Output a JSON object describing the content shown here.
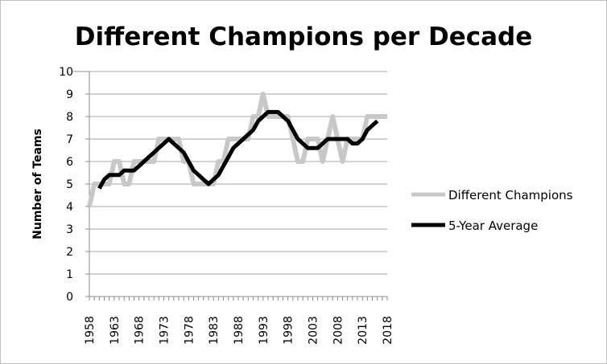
{
  "chart_data": {
    "type": "line",
    "title": "Different Champions per Decade",
    "xlabel": "",
    "ylabel": "Number of Teams",
    "ylim": [
      0,
      10
    ],
    "yticks": [
      0,
      1,
      2,
      3,
      4,
      5,
      6,
      7,
      8,
      9,
      10
    ],
    "xlim": [
      1958,
      2018
    ],
    "xticks": [
      1958,
      1963,
      1968,
      1973,
      1978,
      1983,
      1988,
      1993,
      1998,
      2003,
      2008,
      2013,
      2018
    ],
    "grid": true,
    "legend_position": "right",
    "series": [
      {
        "name": "Different Champions",
        "color": "#c8c8c8",
        "x": [
          1958,
          1959,
          1960,
          1961,
          1962,
          1963,
          1964,
          1965,
          1966,
          1967,
          1968,
          1969,
          1970,
          1971,
          1972,
          1973,
          1974,
          1975,
          1976,
          1977,
          1978,
          1979,
          1980,
          1981,
          1982,
          1983,
          1984,
          1985,
          1986,
          1987,
          1988,
          1989,
          1990,
          1991,
          1992,
          1993,
          1994,
          1995,
          1996,
          1997,
          1998,
          1999,
          2000,
          2001,
          2002,
          2003,
          2004,
          2005,
          2006,
          2007,
          2008,
          2009,
          2010,
          2011,
          2012,
          2013,
          2014,
          2015,
          2016,
          2017,
          2018
        ],
        "values": [
          4,
          5,
          5,
          5,
          5,
          6,
          6,
          5,
          5,
          6,
          6,
          6,
          6,
          6,
          7,
          7,
          7,
          7,
          7,
          6,
          6,
          5,
          5,
          5,
          5,
          5,
          6,
          6,
          7,
          7,
          7,
          7,
          7,
          8,
          8,
          9,
          8,
          8,
          8,
          8,
          8,
          7,
          6,
          6,
          7,
          7,
          7,
          6,
          7,
          8,
          7,
          6,
          7,
          7,
          7,
          7,
          8,
          8,
          8,
          8,
          8
        ]
      },
      {
        "name": "5-Year Average",
        "color": "#000000",
        "x": [
          1960,
          1961,
          1962,
          1963,
          1964,
          1965,
          1966,
          1967,
          1968,
          1969,
          1970,
          1971,
          1972,
          1973,
          1974,
          1975,
          1976,
          1977,
          1978,
          1979,
          1980,
          1981,
          1982,
          1983,
          1984,
          1985,
          1986,
          1987,
          1988,
          1989,
          1990,
          1991,
          1992,
          1993,
          1994,
          1995,
          1996,
          1997,
          1998,
          1999,
          2000,
          2001,
          2002,
          2003,
          2004,
          2005,
          2006,
          2007,
          2008,
          2009,
          2010,
          2011,
          2012,
          2013,
          2014,
          2015,
          2016
        ],
        "values": [
          4.8,
          5.2,
          5.4,
          5.4,
          5.4,
          5.6,
          5.6,
          5.6,
          5.8,
          6,
          6.2,
          6.4,
          6.6,
          6.8,
          7,
          6.8,
          6.6,
          6.4,
          6,
          5.6,
          5.4,
          5.2,
          5,
          5.2,
          5.4,
          5.8,
          6.2,
          6.6,
          6.8,
          7,
          7.2,
          7.4,
          7.8,
          8,
          8.2,
          8.2,
          8.2,
          8,
          7.8,
          7.4,
          7,
          6.8,
          6.6,
          6.6,
          6.6,
          6.8,
          7,
          7,
          7,
          7,
          7,
          6.8,
          6.8,
          7,
          7.4,
          7.6,
          7.8
        ]
      }
    ]
  }
}
